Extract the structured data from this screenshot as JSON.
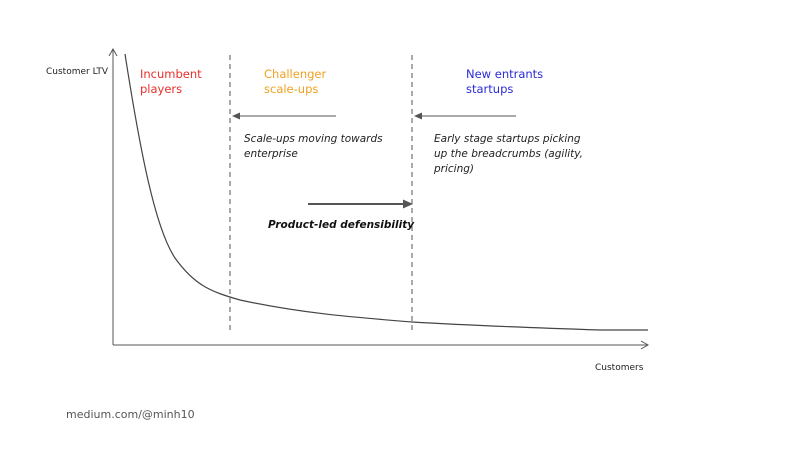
{
  "axes": {
    "y_label": "Customer LTV",
    "x_label": "Customers"
  },
  "segments": [
    {
      "label": "Incumbent\nplayers",
      "color": "#e8302b"
    },
    {
      "label": "Challenger\nscale-ups",
      "color": "#f0a020"
    },
    {
      "label": "New entrants\nstartups",
      "color": "#2b2bd6"
    }
  ],
  "annotations": {
    "scaleups": "Scale-ups moving towards\nenterprise",
    "startups": "Early stage startups picking\nup the breadcrumbs (agility,\npricing)",
    "defensibility": "Product-led defensibility"
  },
  "footer": "medium.com/@minh10",
  "colors": {
    "axis": "#555555",
    "curve": "#444444",
    "divider": "#555555",
    "arrow": "#555555"
  }
}
